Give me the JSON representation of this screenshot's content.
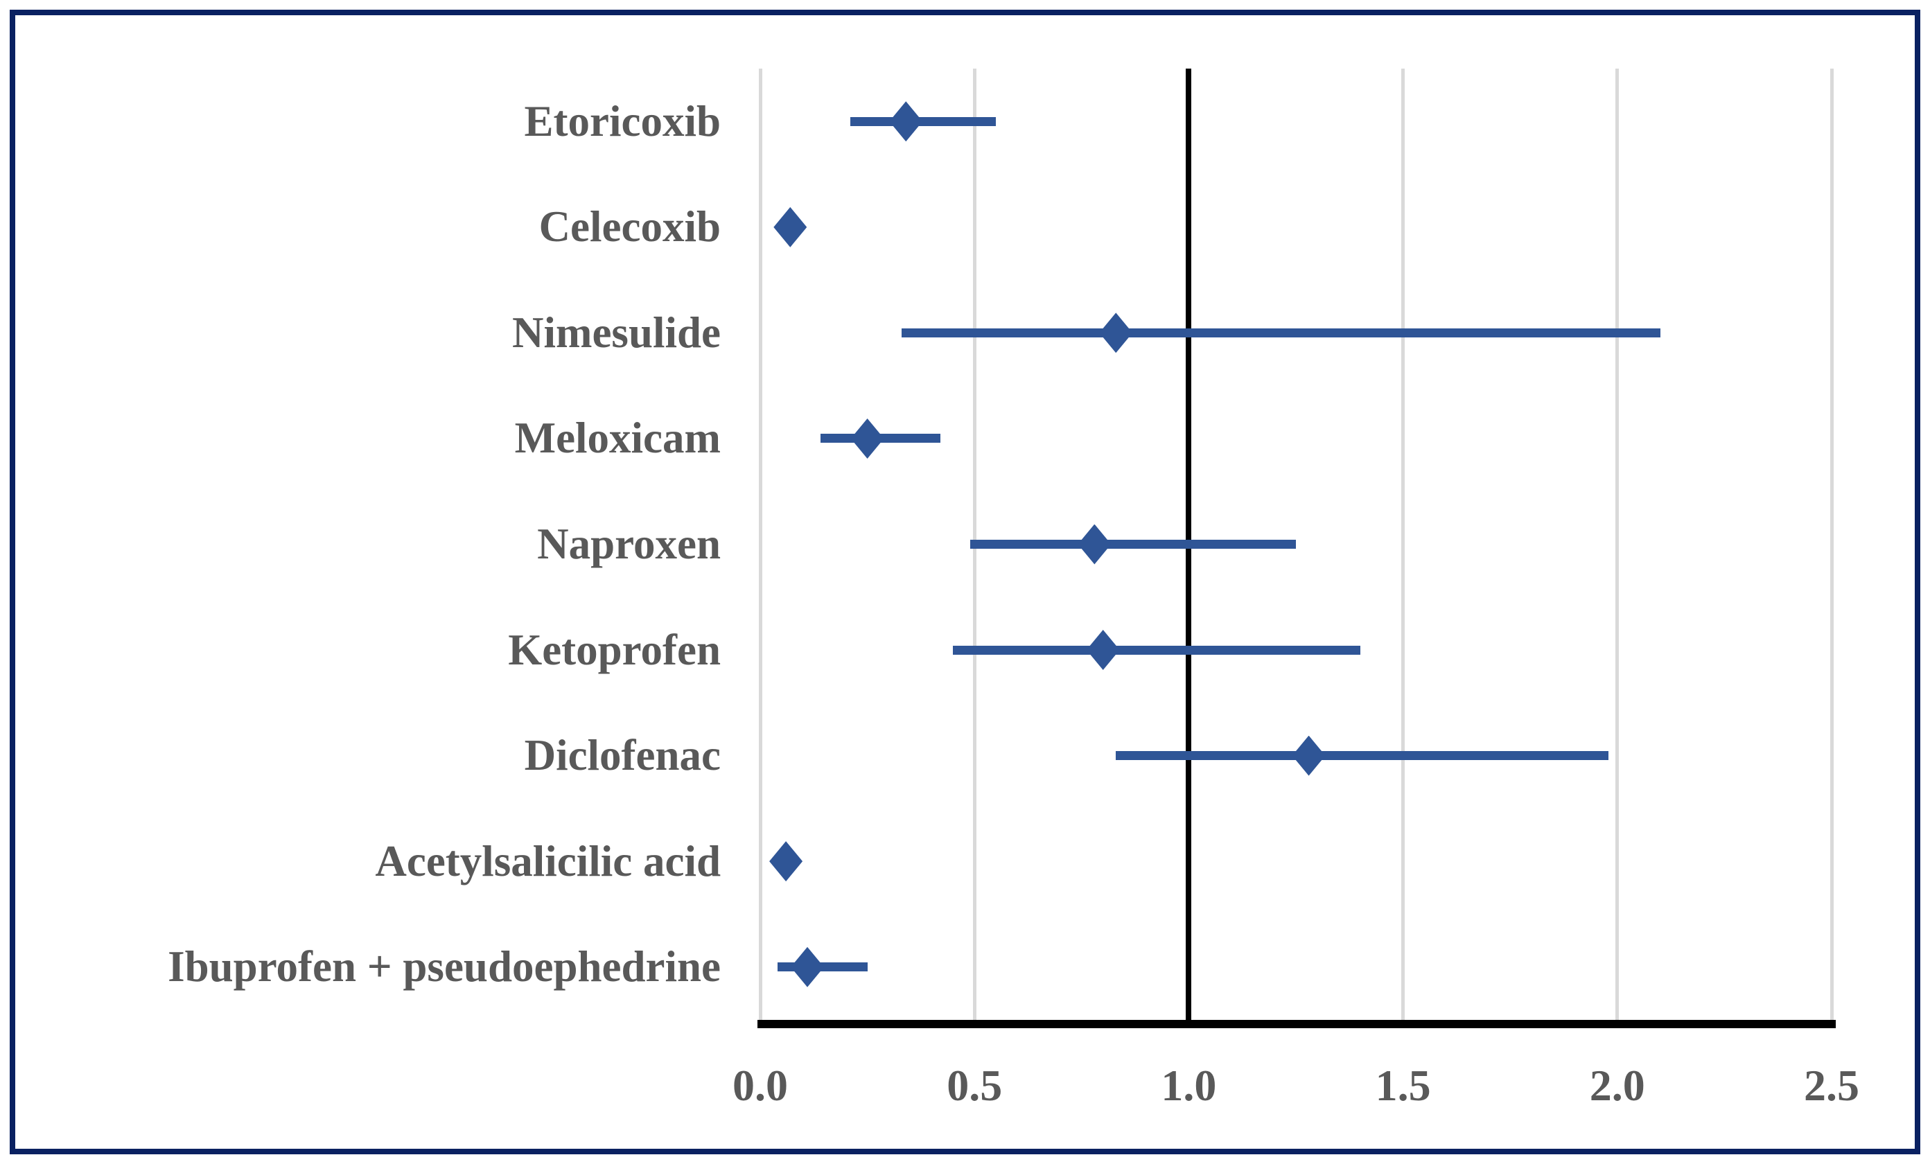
{
  "figure": {
    "background_color": "#ffffff",
    "border_color": "#0a2161"
  },
  "chart_data": {
    "type": "scatter",
    "subtype": "forest-plot",
    "title": "",
    "xlabel": "",
    "ylabel": "",
    "xlim": [
      0.0,
      2.5
    ],
    "x_ticks": [
      "0.0",
      "0.5",
      "1.0",
      "1.5",
      "2.0",
      "2.5"
    ],
    "x_tick_values": [
      0.0,
      0.5,
      1.0,
      1.5,
      2.0,
      2.5
    ],
    "reference_line_x": 1.0,
    "grid": true,
    "legend": false,
    "marker": "diamond",
    "marker_color": "#2f5596",
    "gridline_color": "#d9d9d9",
    "reference_line_color": "#000000",
    "axis_color": "#000000",
    "label_color": "#595959",
    "points": [
      {
        "label": "Etoricoxib",
        "value": 0.34,
        "ci_low": 0.21,
        "ci_high": 0.55
      },
      {
        "label": "Celecoxib",
        "value": 0.07,
        "ci_low": null,
        "ci_high": null
      },
      {
        "label": "Nimesulide",
        "value": 0.83,
        "ci_low": 0.33,
        "ci_high": 2.1
      },
      {
        "label": "Meloxicam",
        "value": 0.25,
        "ci_low": 0.14,
        "ci_high": 0.42
      },
      {
        "label": "Naproxen",
        "value": 0.78,
        "ci_low": 0.49,
        "ci_high": 1.25
      },
      {
        "label": "Ketoprofen",
        "value": 0.8,
        "ci_low": 0.45,
        "ci_high": 1.4
      },
      {
        "label": "Diclofenac",
        "value": 1.28,
        "ci_low": 0.83,
        "ci_high": 1.98
      },
      {
        "label": "Acetylsalicilic acid",
        "value": 0.06,
        "ci_low": null,
        "ci_high": null
      },
      {
        "label": "Ibuprofen + pseudoephedrine",
        "value": 0.11,
        "ci_low": 0.04,
        "ci_high": 0.25
      }
    ]
  }
}
